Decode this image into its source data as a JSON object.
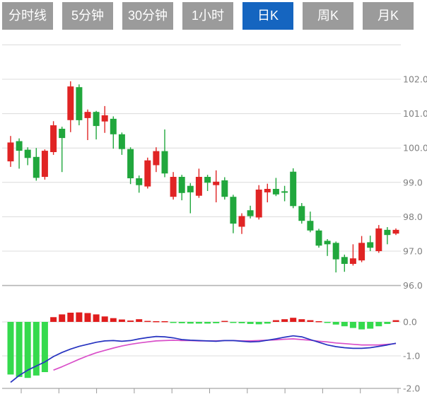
{
  "toolbar": {
    "tabs": [
      {
        "label": "分时线",
        "active": false
      },
      {
        "label": "5分钟",
        "active": false
      },
      {
        "label": "30分钟",
        "active": false
      },
      {
        "label": "1小时",
        "active": false
      },
      {
        "label": "日K",
        "active": true
      },
      {
        "label": "周K",
        "active": false
      },
      {
        "label": "月K",
        "active": false
      }
    ],
    "active_bg": "#1565c0",
    "inactive_bg": "#9b9b9b",
    "text_color": "#ffffff"
  },
  "chart_data": {
    "type": "candlestick",
    "title": "",
    "legend": [],
    "grid": true,
    "price_axis": {
      "side": "right",
      "tick_labels": [
        "102.0",
        "101.0",
        "100.0",
        "99.0",
        "98.0",
        "97.0",
        "96.0"
      ],
      "tick_values": [
        102,
        101,
        100,
        99,
        98,
        97,
        96
      ],
      "grid_extra": [
        103
      ],
      "range": [
        96,
        103
      ]
    },
    "indicator_axis": {
      "side": "right",
      "tick_labels": [
        "0.0",
        "-1.0",
        "-2.0"
      ],
      "tick_values": [
        0,
        -1,
        -2
      ],
      "range": [
        -2,
        0.35
      ]
    },
    "candles_ohlc_note": "each candle = [open, high, low, close]; close>=open drawn red (up), close<open drawn green (down)",
    "candles": [
      [
        99.61,
        100.35,
        99.45,
        100.16
      ],
      [
        100.2,
        100.28,
        99.4,
        99.92
      ],
      [
        99.95,
        100.02,
        99.5,
        99.71
      ],
      [
        99.74,
        100.0,
        99.05,
        99.13
      ],
      [
        99.16,
        99.96,
        99.08,
        99.92
      ],
      [
        99.88,
        100.78,
        99.8,
        100.66
      ],
      [
        100.56,
        100.62,
        99.3,
        100.29
      ],
      [
        100.81,
        101.94,
        100.46,
        101.79
      ],
      [
        101.77,
        101.85,
        100.66,
        100.81
      ],
      [
        100.87,
        101.12,
        100.23,
        101.05
      ],
      [
        101.05,
        101.08,
        100.25,
        100.64
      ],
      [
        100.77,
        101.22,
        100.44,
        100.95
      ],
      [
        100.85,
        100.92,
        99.98,
        100.4
      ],
      [
        100.4,
        100.45,
        99.8,
        99.97
      ],
      [
        99.97,
        100.02,
        98.95,
        99.12
      ],
      [
        99.12,
        99.2,
        98.7,
        98.92
      ],
      [
        98.88,
        99.72,
        98.82,
        99.64
      ],
      [
        99.5,
        100.02,
        99.3,
        99.91
      ],
      [
        99.91,
        100.54,
        99.15,
        99.26
      ],
      [
        98.58,
        99.3,
        98.5,
        99.16
      ],
      [
        99.16,
        99.22,
        98.48,
        98.69
      ],
      [
        98.9,
        98.98,
        98.1,
        98.71
      ],
      [
        98.61,
        99.4,
        98.55,
        99.16
      ],
      [
        99.16,
        99.22,
        98.75,
        98.99
      ],
      [
        98.92,
        99.35,
        98.42,
        99.02
      ],
      [
        99.06,
        99.15,
        98.5,
        98.58
      ],
      [
        98.58,
        98.64,
        97.52,
        97.8
      ],
      [
        97.71,
        98.1,
        97.5,
        98.02
      ],
      [
        98.19,
        98.32,
        97.95,
        98.02
      ],
      [
        97.98,
        98.92,
        97.92,
        98.79
      ],
      [
        98.71,
        98.96,
        98.42,
        98.81
      ],
      [
        98.81,
        99.13,
        98.6,
        98.65
      ],
      [
        98.74,
        98.9,
        98.45,
        98.7
      ],
      [
        99.31,
        99.41,
        98.25,
        98.31
      ],
      [
        98.31,
        98.4,
        97.8,
        97.88
      ],
      [
        97.88,
        98.15,
        97.55,
        97.6
      ],
      [
        97.6,
        97.65,
        97.1,
        97.16
      ],
      [
        97.3,
        97.35,
        96.86,
        97.2
      ],
      [
        97.24,
        97.28,
        96.38,
        96.76
      ],
      [
        96.83,
        96.9,
        96.4,
        96.63
      ],
      [
        96.63,
        97.2,
        96.58,
        96.79
      ],
      [
        96.73,
        97.44,
        96.68,
        97.24
      ],
      [
        97.26,
        97.45,
        97.0,
        97.1
      ],
      [
        97.0,
        97.76,
        96.95,
        97.66
      ],
      [
        97.62,
        97.7,
        97.2,
        97.47
      ],
      [
        97.51,
        97.66,
        97.47,
        97.62
      ]
    ],
    "macd": {
      "histogram": [
        -1.55,
        -1.62,
        -1.65,
        -1.58,
        -1.48,
        0.14,
        0.22,
        0.27,
        0.28,
        0.26,
        0.22,
        0.16,
        0.11,
        0.07,
        0.04,
        0.08,
        0.03,
        0.02,
        0.02,
        -0.01,
        -0.04,
        -0.05,
        -0.05,
        -0.05,
        -0.04,
        0.03,
        -0.02,
        -0.04,
        -0.06,
        -0.07,
        -0.05,
        0.05,
        0.08,
        0.12,
        0.08,
        0.05,
        0.02,
        -0.03,
        -0.08,
        -0.13,
        -0.18,
        -0.22,
        -0.2,
        -0.13,
        -0.06,
        0.05
      ],
      "dif": [
        -1.78,
        -1.58,
        -1.42,
        -1.3,
        -1.18,
        -1.02,
        -0.9,
        -0.8,
        -0.72,
        -0.66,
        -0.6,
        -0.56,
        -0.55,
        -0.57,
        -0.55,
        -0.5,
        -0.46,
        -0.43,
        -0.44,
        -0.47,
        -0.52,
        -0.54,
        -0.55,
        -0.56,
        -0.57,
        -0.55,
        -0.55,
        -0.57,
        -0.59,
        -0.58,
        -0.54,
        -0.5,
        -0.45,
        -0.41,
        -0.44,
        -0.52,
        -0.6,
        -0.68,
        -0.73,
        -0.76,
        -0.78,
        -0.78,
        -0.76,
        -0.72,
        -0.68,
        -0.63
      ],
      "dea": [
        null,
        null,
        null,
        null,
        null,
        -1.42,
        -1.32,
        -1.21,
        -1.1,
        -1.0,
        -0.91,
        -0.84,
        -0.77,
        -0.71,
        -0.66,
        -0.62,
        -0.59,
        -0.56,
        -0.55,
        -0.54,
        -0.55,
        -0.55,
        -0.56,
        -0.56,
        -0.56,
        -0.55,
        -0.55,
        -0.56,
        -0.56,
        -0.55,
        -0.54,
        -0.53,
        -0.51,
        -0.5,
        -0.52,
        -0.54,
        -0.57,
        -0.59,
        -0.62,
        -0.64,
        -0.66,
        -0.68,
        -0.68,
        -0.68,
        -0.66,
        -0.64
      ]
    },
    "colors": {
      "up": "#e02424",
      "down": "#21a73d",
      "hist_up": "#e01d1d",
      "hist_down": "#35da4d",
      "dif_line": "#2633c0",
      "dea_line": "#d94fc9",
      "grid": "#dcdcdc",
      "separator": "#b5b5b5",
      "axis_text": "#808080",
      "tick_mark": "#999999"
    },
    "x_axis": {
      "tick_count": 11,
      "labels_visible": false
    }
  }
}
